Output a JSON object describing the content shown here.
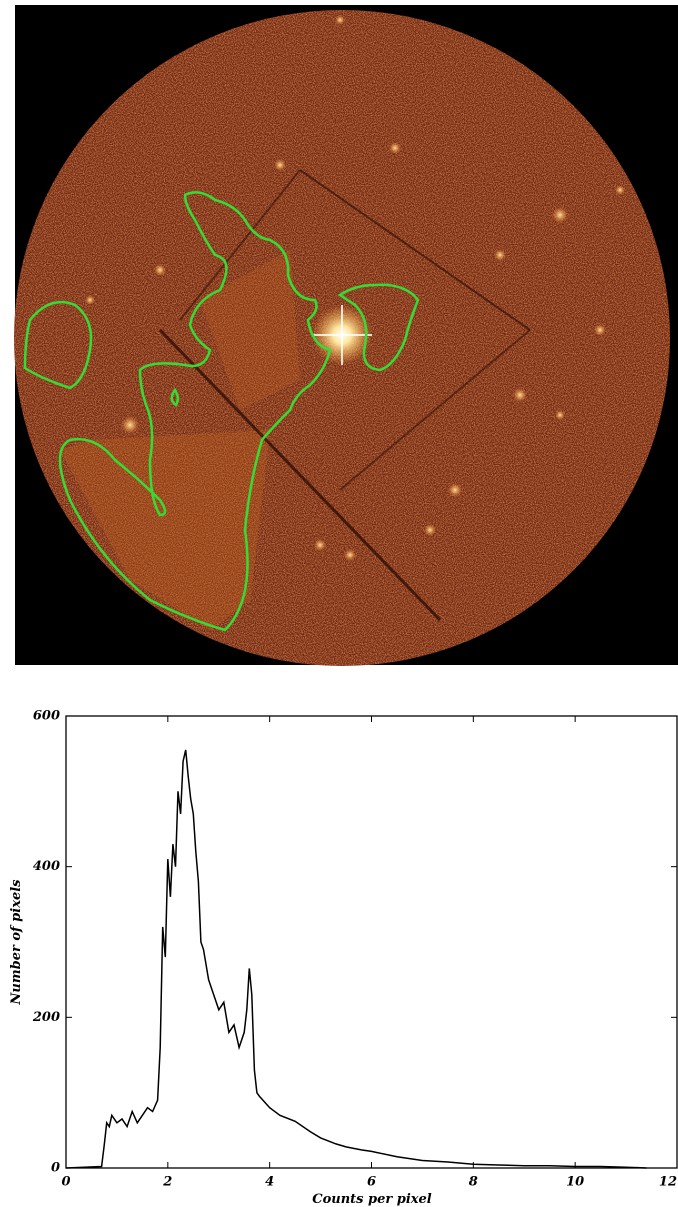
{
  "chart_data": {
    "type": "line",
    "xlabel": "Counts per pixel",
    "ylabel": "Number of pixels",
    "xlim": [
      0,
      12
    ],
    "ylim": [
      0,
      600
    ],
    "xticks": [
      0,
      2,
      4,
      6,
      8,
      10,
      12
    ],
    "yticks": [
      0,
      200,
      400,
      600
    ],
    "series": [
      {
        "name": null,
        "color": "#000000",
        "x": [
          0,
          0.7,
          0.75,
          0.8,
          0.85,
          0.9,
          1.0,
          1.1,
          1.2,
          1.3,
          1.4,
          1.5,
          1.6,
          1.7,
          1.8,
          1.85,
          1.9,
          1.95,
          2.0,
          2.05,
          2.1,
          2.15,
          2.2,
          2.25,
          2.3,
          2.35,
          2.4,
          2.45,
          2.5,
          2.55,
          2.6,
          2.65,
          2.7,
          2.8,
          2.9,
          3.0,
          3.1,
          3.2,
          3.3,
          3.4,
          3.5,
          3.55,
          3.6,
          3.65,
          3.7,
          3.75,
          3.8,
          4.0,
          4.2,
          4.5,
          4.8,
          5.0,
          5.3,
          5.5,
          5.8,
          6.0,
          6.5,
          7.0,
          7.5,
          8.0,
          8.5,
          9.0,
          9.5,
          10.0,
          10.5,
          11.0,
          11.4
        ],
        "values": [
          0,
          2,
          30,
          60,
          55,
          70,
          60,
          65,
          55,
          75,
          60,
          70,
          80,
          75,
          90,
          160,
          320,
          280,
          410,
          360,
          430,
          400,
          500,
          470,
          540,
          555,
          520,
          490,
          470,
          420,
          380,
          300,
          290,
          250,
          230,
          210,
          220,
          180,
          190,
          160,
          180,
          210,
          265,
          230,
          130,
          100,
          95,
          80,
          70,
          62,
          48,
          40,
          32,
          28,
          24,
          22,
          15,
          10,
          8,
          5,
          4,
          3,
          3,
          2,
          2,
          1,
          0
        ]
      }
    ]
  }
}
